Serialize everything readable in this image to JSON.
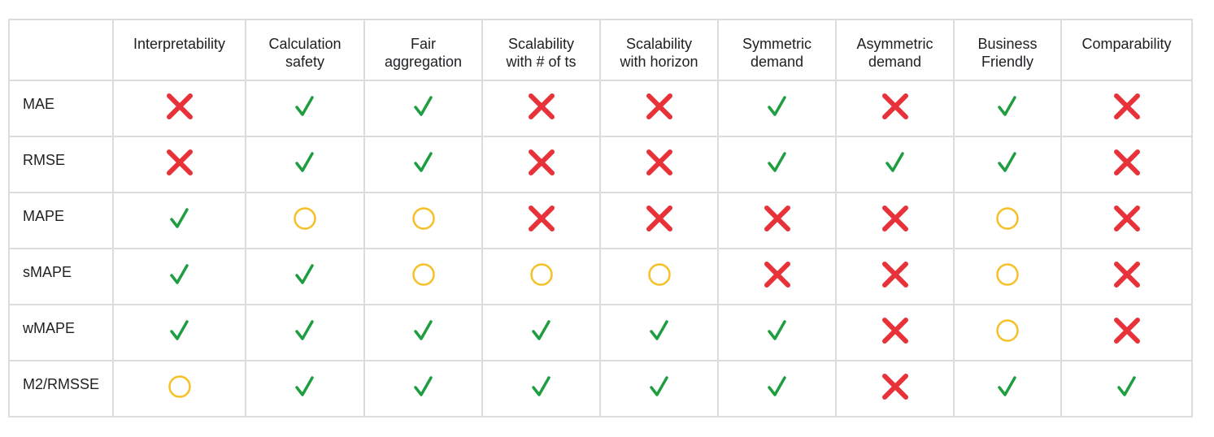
{
  "colors": {
    "yes": "#1e9e40",
    "no": "#e8323a",
    "partial": "#f6c027",
    "border": "#dadce0"
  },
  "table": {
    "corner": "",
    "columns": [
      "Interpretability",
      "Calculation\nsafety",
      "Fair\naggregation",
      "Scalability\nwith # of ts",
      "Scalability\nwith horizon",
      "Symmetric\ndemand",
      "Asymmetric\ndemand",
      "Business\nFriendly",
      "Comparability"
    ],
    "rows": [
      {
        "label": "MAE",
        "cells": [
          "no",
          "yes",
          "yes",
          "no",
          "no",
          "yes",
          "no",
          "yes",
          "no"
        ]
      },
      {
        "label": "RMSE",
        "cells": [
          "no",
          "yes",
          "yes",
          "no",
          "no",
          "yes",
          "yes",
          "yes",
          "no"
        ]
      },
      {
        "label": "MAPE",
        "cells": [
          "yes",
          "partial",
          "partial",
          "no",
          "no",
          "no",
          "no",
          "partial",
          "no"
        ]
      },
      {
        "label": "sMAPE",
        "cells": [
          "yes",
          "yes",
          "partial",
          "partial",
          "partial",
          "no",
          "no",
          "partial",
          "no"
        ]
      },
      {
        "label": "wMAPE",
        "cells": [
          "yes",
          "yes",
          "yes",
          "yes",
          "yes",
          "yes",
          "no",
          "partial",
          "no"
        ]
      },
      {
        "label": "M2/RMSSE",
        "cells": [
          "partial",
          "yes",
          "yes",
          "yes",
          "yes",
          "yes",
          "no",
          "yes",
          "yes"
        ]
      }
    ]
  },
  "icons": {
    "yes": "check-icon",
    "no": "cross-icon",
    "partial": "circle-icon"
  }
}
